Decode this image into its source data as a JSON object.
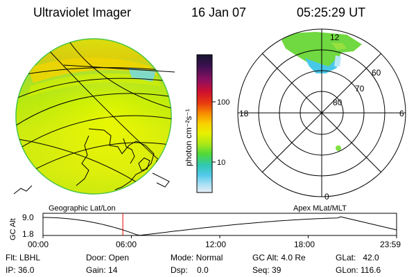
{
  "header": {
    "instrument": "Ultraviolet Imager",
    "date": "16 Jan 07",
    "time": "05:25:29 UT"
  },
  "colorbar": {
    "unit_label": "photon cm⁻²s⁻¹",
    "ticks": [
      "100",
      "10"
    ],
    "colors_top_to_bottom": [
      "#1a1a3a",
      "#3b1050",
      "#6a1070",
      "#b00040",
      "#e01820",
      "#f06010",
      "#f8a000",
      "#f8d800",
      "#e8f000",
      "#b8f000",
      "#80e020",
      "#40d040",
      "#30c8a0",
      "#40c0e0",
      "#80d8f0",
      "#c0e8f8",
      "#e8f0f8"
    ]
  },
  "polar": {
    "mlt_labels": [
      "12",
      "18",
      "6",
      "0"
    ],
    "mlat_labels": [
      "60",
      "70",
      "80"
    ]
  },
  "timeline": {
    "left_title": "Geographic Lat/Lon",
    "right_title": "Apex MLat/MLT",
    "y_axis_label": "GC Alt",
    "y_ticks": [
      "9.0",
      "1.8"
    ],
    "x_ticks": [
      "00:00",
      "06:00",
      "12:00",
      "18:00",
      "23:59"
    ],
    "current_time_hours": 5.42
  },
  "status": {
    "filter": "Flt: LBHL",
    "ip": "IP: 36.0",
    "door": "Door: Open",
    "gain": "Gain: 14",
    "mode": "Mode: Normal",
    "dsp": "Dsp:    0.0",
    "gc_alt": "GC Alt: 4.0 Re",
    "seq": "Seq: 39",
    "glat": "GLat:   42.0",
    "glon": "GLon: 116.6"
  }
}
